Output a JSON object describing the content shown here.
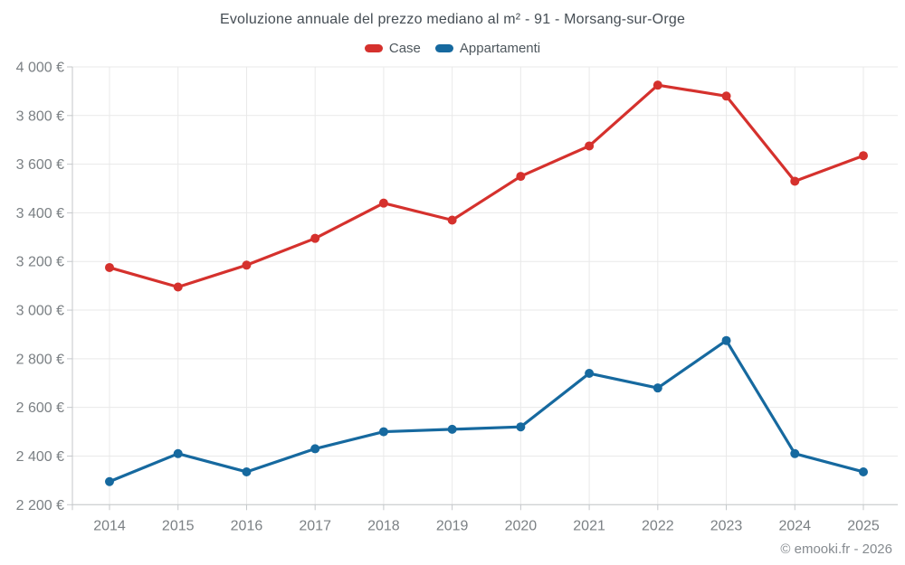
{
  "header": {
    "title": "Evoluzione annuale del prezzo mediano al m² - 91 - Morsang-sur-Orge"
  },
  "footer": {
    "credit": "© emooki.fr - 2026"
  },
  "colors": {
    "case_red": "#d5312d",
    "appartamenti_blue": "#16699f",
    "gridline": "#e9e9e9",
    "axis_line": "#c4c7ca",
    "tick_label": "#7b8084",
    "title_text": "#454d54",
    "legend_text": "#4e575d",
    "background": "#ffffff"
  },
  "chart_data": {
    "type": "line",
    "title": "Evoluzione annuale del prezzo mediano al m² - 91 - Morsang-sur-Orge",
    "x": [
      "2014",
      "2015",
      "2016",
      "2017",
      "2018",
      "2019",
      "2020",
      "2021",
      "2022",
      "2023",
      "2024",
      "2025"
    ],
    "series": [
      {
        "name": "Case",
        "color": "#d5312d",
        "values": [
          3175,
          3095,
          3185,
          3295,
          3440,
          3370,
          3550,
          3675,
          3925,
          3880,
          3530,
          3635
        ]
      },
      {
        "name": "Appartamenti",
        "color": "#16699f",
        "values": [
          2295,
          2410,
          2335,
          2430,
          2500,
          2510,
          2520,
          2740,
          2680,
          2875,
          2410,
          2335
        ]
      }
    ],
    "ylim": [
      2200,
      4000
    ],
    "yticks": [
      2200,
      2400,
      2600,
      2800,
      3000,
      3200,
      3400,
      3600,
      3800,
      4000
    ],
    "ytick_labels": [
      "2 200 €",
      "2 400 €",
      "2 600 €",
      "2 800 €",
      "3 000 €",
      "3 200 €",
      "3 400 €",
      "3 600 €",
      "3 800 €",
      "4 000 €"
    ],
    "xlabel": "",
    "ylabel": "",
    "grid": true,
    "legend_position": "top",
    "marker": "circle"
  }
}
